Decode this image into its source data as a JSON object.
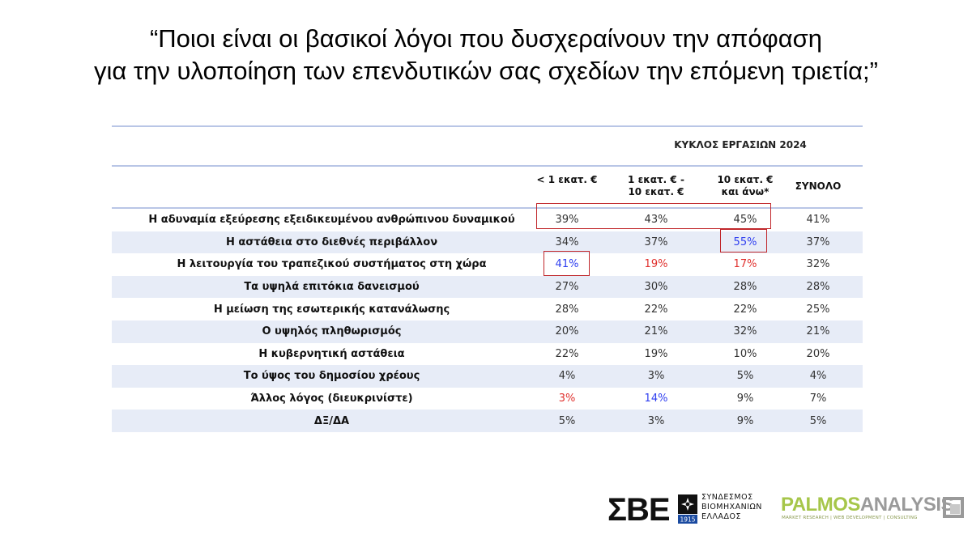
{
  "title": {
    "line1": "“Ποιοι είναι οι βασικοί λόγοι που δυσχεραίνουν την απόφαση",
    "line2": "για την υλοποίηση των επενδυτικών σας σχεδίων την επόμενη τριετία;”"
  },
  "table": {
    "group_header": "ΚΥΚΛΟΣ ΕΡΓΑΣΙΩΝ 2024",
    "columns": [
      {
        "line1": "< 1 εκατ. €",
        "line2": ""
      },
      {
        "line1": "1 εκατ. € -",
        "line2": "10 εκατ. €"
      },
      {
        "line1": "10 εκατ. €",
        "line2": "και άνω*"
      },
      {
        "line1": "ΣΥΝΟΛΟ",
        "line2": ""
      }
    ],
    "rows": [
      {
        "label": "Η αδυναμία εξεύρεσης εξειδικευμένου ανθρώπινου δυναμικού",
        "values": [
          "39%",
          "43%",
          "45%",
          "41%"
        ]
      },
      {
        "label": "Η αστάθεια στο διεθνές περιβάλλον",
        "values": [
          "34%",
          "37%",
          "55%",
          "37%"
        ]
      },
      {
        "label": "Η λειτουργία του τραπεζικού συστήματος στη χώρα",
        "values": [
          "41%",
          "19%",
          "17%",
          "32%"
        ]
      },
      {
        "label": "Τα υψηλά επιτόκια δανεισμού",
        "values": [
          "27%",
          "30%",
          "28%",
          "28%"
        ]
      },
      {
        "label": "Η μείωση της εσωτερικής κατανάλωσης",
        "values": [
          "28%",
          "22%",
          "22%",
          "25%"
        ]
      },
      {
        "label": "Ο υψηλός πληθωρισμός",
        "values": [
          "20%",
          "21%",
          "32%",
          "21%"
        ]
      },
      {
        "label": "Η κυβερνητική αστάθεια",
        "values": [
          "22%",
          "19%",
          "10%",
          "20%"
        ]
      },
      {
        "label": "Το ύψος του δημοσίου χρέους",
        "values": [
          "4%",
          "3%",
          "5%",
          "4%"
        ]
      },
      {
        "label": "Άλλος λόγος (διευκρινίστε)",
        "values": [
          "3%",
          "14%",
          "9%",
          "7%"
        ]
      },
      {
        "label": "ΔΞ/ΔΑ",
        "values": [
          "5%",
          "3%",
          "9%",
          "5%"
        ]
      }
    ],
    "colors": {
      "header_rule": "#b9c6e6",
      "shaded_row": "#e7ecf7",
      "highlight_low": "#e0312e",
      "highlight_high": "#2e3ef0",
      "callout_box": "#c0262a"
    }
  },
  "logos": {
    "sbe": {
      "letters": "ΣΒΕ",
      "year": "1915",
      "name_line1": "ΣΥΝΔΕΣΜΟΣ",
      "name_line2": "ΒΙΟΜΗΧΑΝΙΩΝ",
      "name_line3": "ΕΛΛΑΔΟΣ"
    },
    "palmos": {
      "name_part1": "PALMOS",
      "name_part2": "ANALYSIS",
      "tagline": "MARKET RESEARCH | WEB DEVELOPMENT | CONSULTING"
    }
  }
}
